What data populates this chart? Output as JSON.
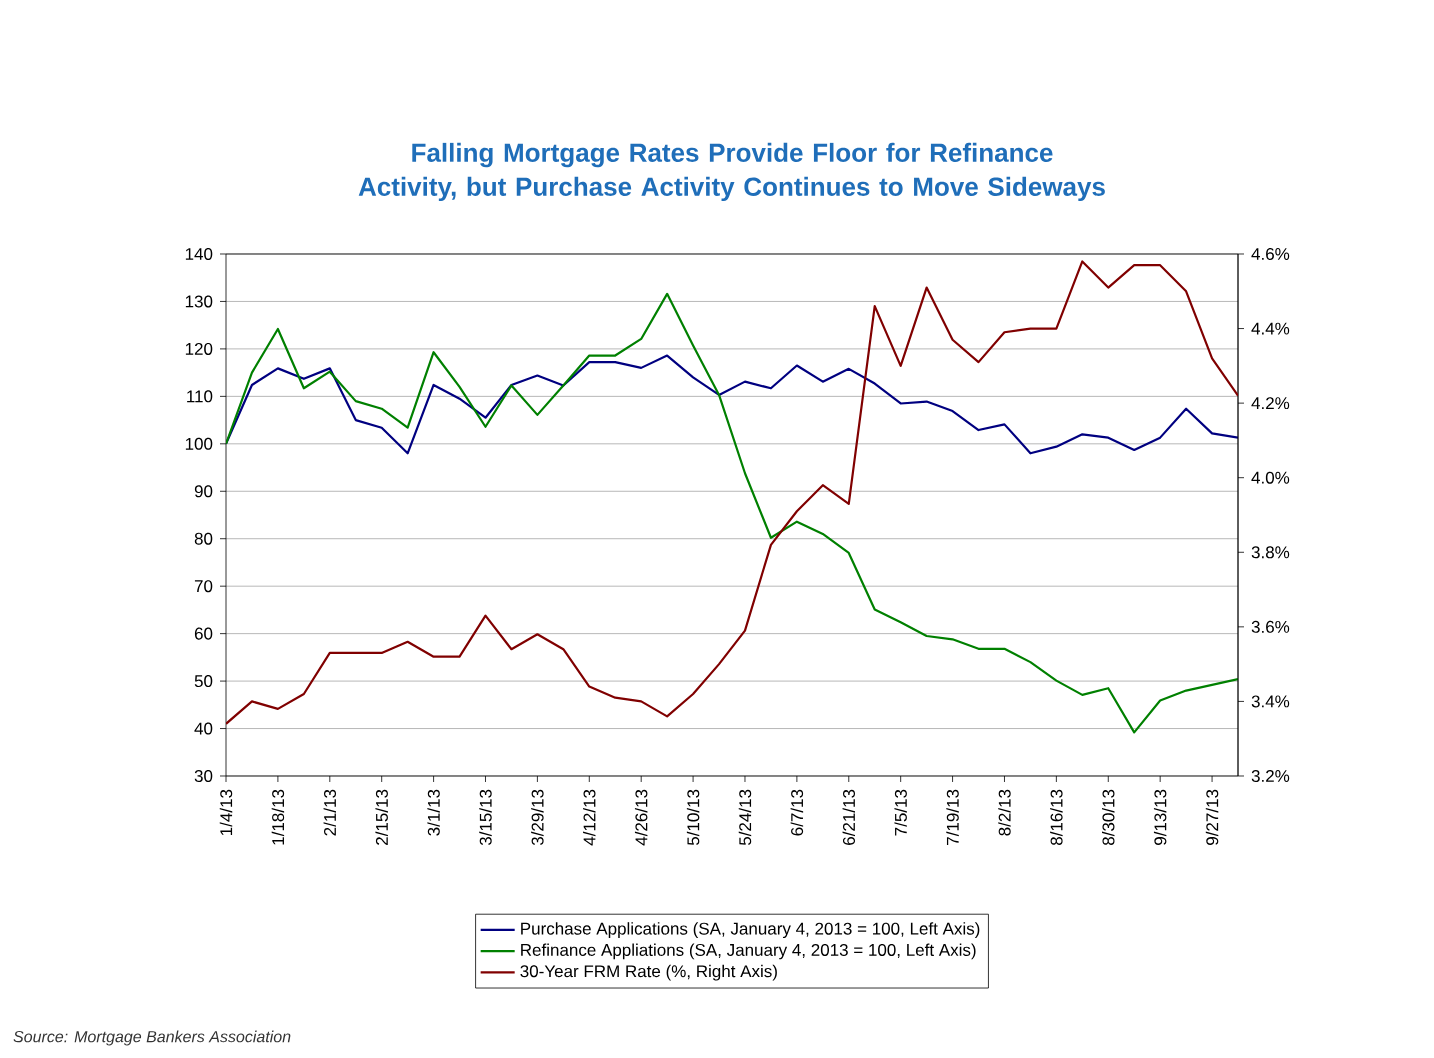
{
  "chart_data": {
    "type": "line",
    "title": "Falling Mortgage Rates Provide Floor for Refinance Activity, but Purchase Activity Continues to Move Sideways",
    "categories": [
      "1/4/13",
      null,
      "1/18/13",
      null,
      "2/1/13",
      null,
      "2/15/13",
      null,
      "3/1/13",
      null,
      "3/15/13",
      null,
      "3/29/13",
      null,
      "4/12/13",
      null,
      "4/26/13",
      null,
      "5/10/13",
      null,
      "5/24/13",
      null,
      "6/7/13",
      null,
      "6/21/13",
      null,
      "7/5/13",
      null,
      "7/19/13",
      null,
      "8/2/13",
      null,
      "8/16/13",
      null,
      "8/30/13",
      null,
      "9/13/13",
      null,
      "9/27/13",
      null
    ],
    "series": [
      {
        "name": "Purchase Applications (SA, January 4, 2013 = 100, Left Axis)",
        "color": "#000080",
        "values": [
          100,
          112.4,
          115.9,
          113.7,
          115.9,
          105,
          103.4,
          98,
          112.4,
          109.5,
          105.5,
          112.4,
          114.4,
          112.3,
          117.2,
          117.2,
          116,
          118.6,
          114,
          110.3,
          113.1,
          111.7,
          116.5,
          113.1,
          115.8,
          112.7,
          108.5,
          108.9,
          106.9,
          102.9,
          104.1,
          98,
          99.4,
          102,
          101.3,
          98.7,
          101.3,
          107.4,
          102.2,
          101.3
        ]
      },
      {
        "name": "Refinance Appliations (SA, January 4, 2013 = 100, Left Axis)",
        "color": "#008000",
        "values": [
          100,
          115,
          124.2,
          111.7,
          115.2,
          109,
          107.4,
          103.4,
          119.3,
          112,
          103.6,
          112.3,
          106.1,
          112.3,
          118.6,
          118.6,
          122.1,
          131.6,
          120.7,
          110.3,
          93.8,
          80.2,
          83.6,
          81,
          77,
          65.1,
          62.4,
          59.5,
          58.8,
          56.8,
          56.8,
          54,
          50.1,
          47.1,
          48.5,
          39.2,
          45.9,
          48,
          49.2,
          50.4
        ]
      },
      {
        "name": "30-Year FRM Rate (%, Right Axis)",
        "color": "#800000",
        "axis": "y2",
        "values": [
          3.34,
          3.4,
          3.38,
          3.42,
          3.53,
          3.53,
          3.53,
          3.56,
          3.52,
          3.52,
          3.63,
          3.54,
          3.58,
          3.54,
          3.44,
          3.41,
          3.4,
          3.36,
          3.42,
          3.5,
          3.59,
          3.82,
          3.91,
          3.98,
          3.93,
          4.46,
          4.3,
          4.51,
          4.37,
          4.31,
          4.39,
          4.4,
          4.4,
          4.58,
          4.51,
          4.57,
          4.57,
          4.5,
          4.32,
          4.22
        ]
      }
    ],
    "ylim": [
      30,
      140
    ],
    "yticks": [
      30,
      40,
      50,
      60,
      70,
      80,
      90,
      100,
      110,
      120,
      130,
      140
    ],
    "y2lim": [
      3.2,
      4.6
    ],
    "y2ticks": [
      {
        "value": 3.2,
        "label": "3.2%"
      },
      {
        "value": 3.4,
        "label": "3.4%"
      },
      {
        "value": 3.6,
        "label": "3.6%"
      },
      {
        "value": 3.8,
        "label": "3.8%"
      },
      {
        "value": 4.0,
        "label": "4.0%"
      },
      {
        "value": 4.2,
        "label": "4.2%"
      },
      {
        "value": 4.4,
        "label": "4.4%"
      },
      {
        "value": 4.6,
        "label": "4.6%"
      }
    ],
    "grid": "y",
    "legend": "bottom",
    "marker": "none",
    "line_style": "solid",
    "annotations": [
      "Source: Mortgage Bankers Association"
    ]
  }
}
